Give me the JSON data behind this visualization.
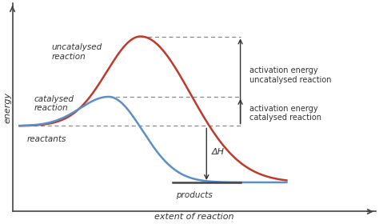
{
  "background_color": "#ffffff",
  "xlabel": "extent of reaction",
  "ylabel": "energy",
  "reactant_level": 0.42,
  "product_level": 0.13,
  "uncatalysed_peak": 0.88,
  "catalysed_peak": 0.57,
  "uncatalysed_color": "#c0392b",
  "catalysed_color": "#5b8fc9",
  "text_color": "#333333",
  "dashed_color": "#888888",
  "arrow_color": "#333333",
  "label_uncatalysed": "uncatalysed\nreaction",
  "label_catalysed": "catalysed\nreaction",
  "label_reactants": "reactants",
  "label_products": "products",
  "label_deltaH": "ΔH",
  "label_act_uncatalysed": "activation energy\nuncatalysed reaction",
  "label_act_catalysed": "activation energy\ncatalysed reaction"
}
